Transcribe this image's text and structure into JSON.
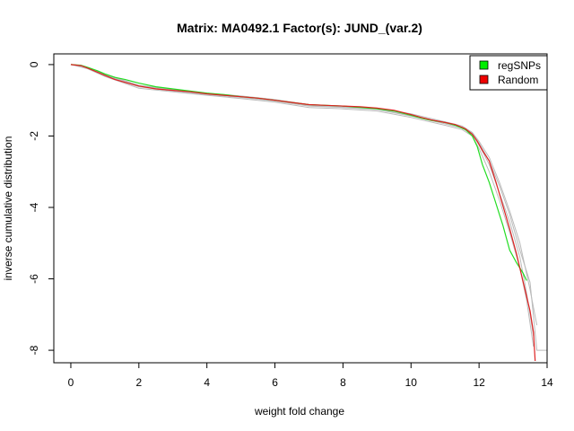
{
  "chart_data": {
    "type": "line",
    "title": "Matrix: MA0492.1 Factor(s): JUND_(var.2)",
    "xlabel": "weight fold change",
    "ylabel": "inverse cumulative distribution",
    "xlim": [
      0,
      14
    ],
    "ylim": [
      -8,
      0
    ],
    "xticks": [
      "0",
      "2",
      "4",
      "6",
      "8",
      "10",
      "12",
      "14"
    ],
    "yticks": [
      "0",
      "-2",
      "-4",
      "-6",
      "-8"
    ],
    "grid": false,
    "legend_position": "top-right",
    "legend": [
      {
        "name": "regSNPs",
        "color": "#00ee00"
      },
      {
        "name": "Random",
        "color": "#ee0000"
      }
    ],
    "series": [
      {
        "name": "regSNPs",
        "color": "#22dd22",
        "x": [
          0,
          0.3,
          0.5,
          0.8,
          1.0,
          1.3,
          1.6,
          2.0,
          2.5,
          3.0,
          3.5,
          4.0,
          4.5,
          5.0,
          5.5,
          6.0,
          6.5,
          7.0,
          7.5,
          8.0,
          8.5,
          9.0,
          9.5,
          10.0,
          10.3,
          10.6,
          11.0,
          11.3,
          11.6,
          11.8,
          11.95,
          12.1,
          12.3,
          12.5,
          12.7,
          12.9,
          13.1,
          13.2,
          13.3,
          13.4
        ],
        "y": [
          0,
          -0.02,
          -0.08,
          -0.18,
          -0.26,
          -0.36,
          -0.42,
          -0.52,
          -0.62,
          -0.68,
          -0.74,
          -0.8,
          -0.84,
          -0.9,
          -0.94,
          -1.0,
          -1.06,
          -1.12,
          -1.14,
          -1.16,
          -1.2,
          -1.24,
          -1.3,
          -1.42,
          -1.5,
          -1.56,
          -1.62,
          -1.7,
          -1.82,
          -2.0,
          -2.3,
          -2.8,
          -3.3,
          -3.9,
          -4.5,
          -5.2,
          -5.55,
          -5.7,
          -5.85,
          -6.05
        ]
      },
      {
        "name": "Random",
        "color": "#dd2222",
        "x": [
          0,
          0.3,
          0.5,
          0.8,
          1.0,
          1.3,
          1.6,
          2.0,
          2.5,
          3.0,
          3.5,
          4.0,
          4.5,
          5.0,
          5.5,
          6.0,
          6.5,
          7.0,
          7.5,
          8.0,
          8.5,
          9.0,
          9.5,
          10.0,
          10.3,
          10.6,
          11.0,
          11.3,
          11.6,
          11.8,
          11.95,
          12.1,
          12.3,
          12.5,
          12.7,
          12.9,
          13.1,
          13.3,
          13.5,
          13.6,
          13.65
        ],
        "y": [
          0,
          -0.03,
          -0.1,
          -0.22,
          -0.3,
          -0.42,
          -0.5,
          -0.6,
          -0.68,
          -0.72,
          -0.76,
          -0.82,
          -0.86,
          -0.9,
          -0.94,
          -1.0,
          -1.06,
          -1.12,
          -1.14,
          -1.16,
          -1.18,
          -1.22,
          -1.28,
          -1.4,
          -1.48,
          -1.55,
          -1.62,
          -1.68,
          -1.8,
          -1.95,
          -2.15,
          -2.4,
          -2.7,
          -3.3,
          -3.95,
          -4.6,
          -5.3,
          -6.1,
          -6.9,
          -7.5,
          -8.3
        ]
      },
      {
        "name": "",
        "color": "#bbbbbb",
        "x": [
          0,
          0.5,
          1.0,
          2.0,
          3.0,
          4.0,
          5.0,
          6.0,
          7.0,
          8.0,
          9.0,
          10.0,
          11.0,
          11.5,
          11.8,
          12.0,
          12.3,
          12.6,
          12.9,
          13.2,
          13.4,
          13.6
        ],
        "y": [
          0,
          -0.1,
          -0.3,
          -0.62,
          -0.74,
          -0.84,
          -0.92,
          -1.02,
          -1.16,
          -1.2,
          -1.26,
          -1.44,
          -1.66,
          -1.78,
          -1.95,
          -2.25,
          -2.8,
          -3.6,
          -4.4,
          -5.4,
          -6.4,
          -7.6
        ]
      },
      {
        "name": "",
        "color": "#bbbbbb",
        "x": [
          0,
          0.5,
          1.0,
          2.0,
          3.0,
          4.0,
          5.0,
          6.0,
          7.0,
          8.0,
          9.0,
          10.0,
          11.0,
          11.5,
          11.8,
          12.0,
          12.3,
          12.6,
          12.9,
          13.2,
          13.5,
          13.7
        ],
        "y": [
          0,
          -0.08,
          -0.26,
          -0.58,
          -0.7,
          -0.8,
          -0.88,
          -0.98,
          -1.12,
          -1.18,
          -1.22,
          -1.38,
          -1.6,
          -1.72,
          -1.9,
          -2.15,
          -2.6,
          -3.3,
          -4.1,
          -5.0,
          -6.3,
          -7.3
        ]
      },
      {
        "name": "",
        "color": "#bbbbbb",
        "x": [
          0,
          0.5,
          1.0,
          2.0,
          3.0,
          4.0,
          5.0,
          6.0,
          7.0,
          8.0,
          9.0,
          10.0,
          11.0,
          11.5,
          11.8,
          12.0,
          12.3,
          12.6,
          12.9,
          13.2,
          13.4,
          13.6
        ],
        "y": [
          0,
          -0.12,
          -0.33,
          -0.66,
          -0.76,
          -0.86,
          -0.95,
          -1.05,
          -1.2,
          -1.24,
          -1.3,
          -1.48,
          -1.7,
          -1.82,
          -2.0,
          -2.35,
          -3.0,
          -3.8,
          -4.7,
          -5.7,
          -6.6,
          -7.9
        ]
      },
      {
        "name": "",
        "color": "#bbbbbb",
        "x": [
          0,
          0.5,
          1.0,
          2.0,
          3.0,
          4.0,
          5.0,
          6.0,
          7.0,
          8.0,
          9.0,
          10.0,
          11.0,
          11.5,
          11.8,
          12.0,
          12.3,
          12.6,
          12.9,
          13.2,
          13.5,
          13.7,
          14.0
        ],
        "y": [
          0,
          -0.09,
          -0.28,
          -0.6,
          -0.72,
          -0.82,
          -0.9,
          -1.0,
          -1.14,
          -1.19,
          -1.24,
          -1.42,
          -1.63,
          -1.75,
          -1.92,
          -2.2,
          -2.7,
          -3.4,
          -4.2,
          -5.2,
          -6.1,
          -8.0,
          -8.0
        ]
      }
    ]
  }
}
